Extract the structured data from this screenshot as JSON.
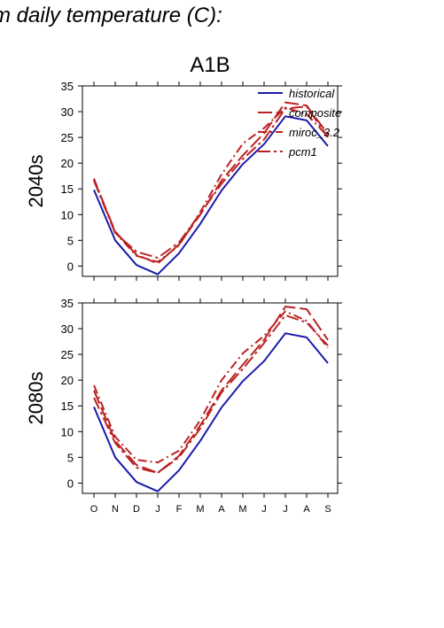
{
  "figure": {
    "title": "m daily temperature (C):",
    "scenario": "A1B"
  },
  "chart_data": [
    {
      "type": "line",
      "row_label": "2040s",
      "categories": [
        "O",
        "N",
        "D",
        "J",
        "F",
        "M",
        "A",
        "M",
        "J",
        "J",
        "A",
        "S"
      ],
      "ylim": [
        -2,
        35
      ],
      "yticks": [
        0,
        5,
        10,
        15,
        20,
        25,
        30,
        35
      ],
      "legend_position": "top-right",
      "series": [
        {
          "name": "historical",
          "color": "#1a1aaa",
          "dash": "solid",
          "values": [
            14.8,
            5.0,
            0.2,
            -1.6,
            2.5,
            8.2,
            14.7,
            19.8,
            23.7,
            29.1,
            28.3,
            23.3
          ]
        },
        {
          "name": "composite",
          "color": "#bb2222",
          "dash": "long",
          "values": [
            16.8,
            6.7,
            2.2,
            0.5,
            4.2,
            10.0,
            16.6,
            21.5,
            25.8,
            31.8,
            31.2,
            25.6
          ]
        },
        {
          "name": "miroc_3.2",
          "color": "#bb2222",
          "dash": "dashdot",
          "values": [
            17.0,
            6.5,
            2.0,
            0.8,
            4.0,
            10.5,
            17.8,
            23.8,
            26.8,
            30.8,
            29.5,
            25.2
          ]
        },
        {
          "name": "pcm1",
          "color": "#bb2222",
          "dash": "dashdotlong",
          "values": [
            16.6,
            6.4,
            2.8,
            1.6,
            4.6,
            10.2,
            16.0,
            20.8,
            24.6,
            30.6,
            31.0,
            25.0
          ]
        }
      ]
    },
    {
      "type": "line",
      "row_label": "2080s",
      "categories": [
        "O",
        "N",
        "D",
        "J",
        "F",
        "M",
        "A",
        "M",
        "J",
        "J",
        "A",
        "S"
      ],
      "ylim": [
        -2,
        35
      ],
      "yticks": [
        0,
        5,
        10,
        15,
        20,
        25,
        30,
        35
      ],
      "series": [
        {
          "name": "historical",
          "color": "#1a1aaa",
          "dash": "solid",
          "values": [
            14.8,
            5.0,
            0.2,
            -1.6,
            2.5,
            8.2,
            14.7,
            19.8,
            23.7,
            29.1,
            28.3,
            23.3
          ]
        },
        {
          "name": "composite",
          "color": "#bb2222",
          "dash": "long",
          "values": [
            18.0,
            8.2,
            3.5,
            2.0,
            5.3,
            11.2,
            18.0,
            23.0,
            27.8,
            34.3,
            33.8,
            27.8
          ]
        },
        {
          "name": "miroc_3.2",
          "color": "#bb2222",
          "dash": "dashdot",
          "values": [
            19.0,
            9.0,
            4.5,
            4.0,
            6.3,
            12.2,
            20.0,
            25.2,
            28.6,
            33.4,
            31.5,
            26.3
          ]
        },
        {
          "name": "pcm1",
          "color": "#bb2222",
          "dash": "dashdotlong",
          "values": [
            16.6,
            7.8,
            3.0,
            2.0,
            5.0,
            10.6,
            17.6,
            22.2,
            27.2,
            32.6,
            31.2,
            26.7
          ]
        }
      ]
    }
  ],
  "legend": {
    "entries": [
      "historical",
      "composite",
      "miroc_3.2",
      "pcm1"
    ]
  },
  "palette": {
    "historical": "#1a1aaa",
    "projection": "#bb2222",
    "axis": "#000000"
  }
}
